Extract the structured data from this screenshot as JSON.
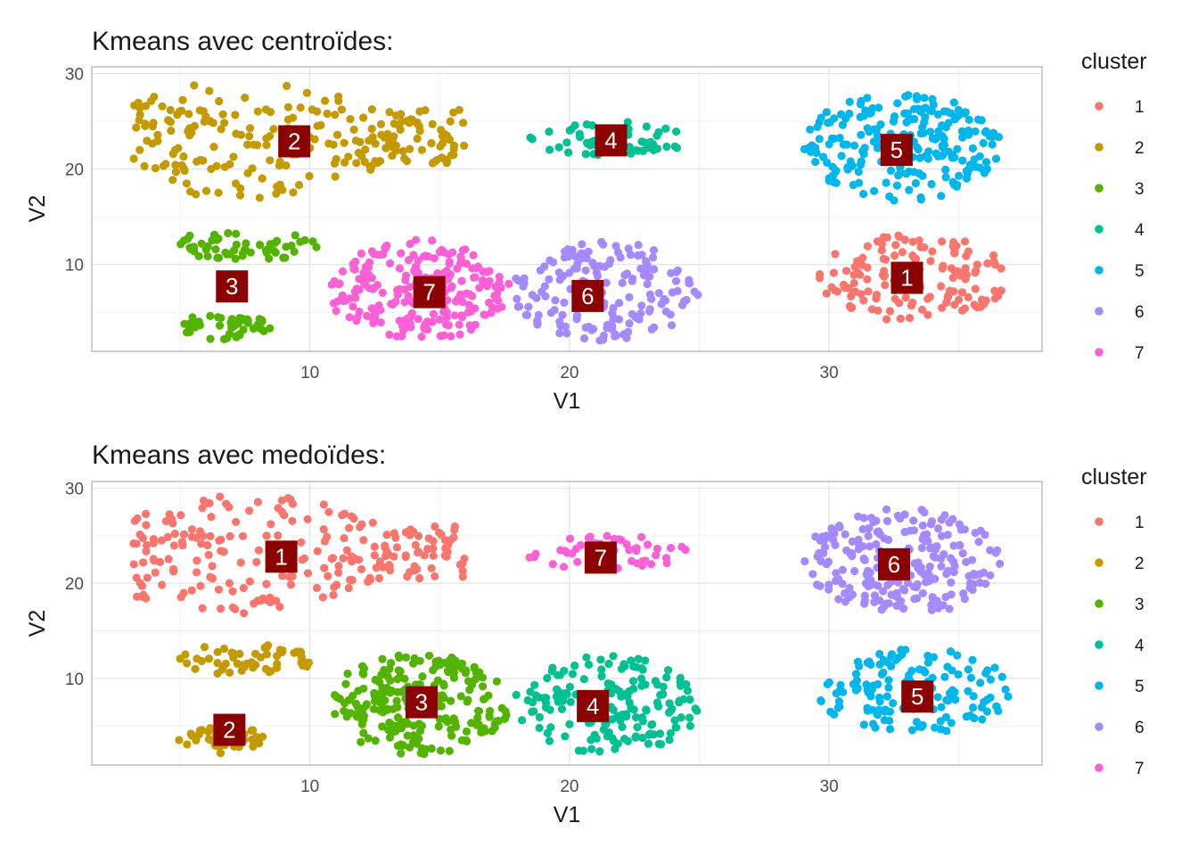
{
  "colors": {
    "palette": [
      "#F8766D",
      "#C49A00",
      "#53B400",
      "#00C094",
      "#00B6EB",
      "#A58AFF",
      "#FB61D7"
    ],
    "centroid_box": "#8B0000",
    "grid": "#e6e6e6",
    "panel_border": "#b3b3b3"
  },
  "chart_data": [
    {
      "type": "scatter",
      "title": "Kmeans avec centroïdes:",
      "xlabel": "V1",
      "ylabel": "V2",
      "xlim": [
        1.6,
        38.2
      ],
      "ylim": [
        0.9,
        30.7
      ],
      "x_ticks": [
        10,
        20,
        30
      ],
      "y_ticks": [
        10,
        20,
        30
      ],
      "grid": true,
      "legend": {
        "title": "cluster",
        "position": "right",
        "entries": [
          "1",
          "2",
          "3",
          "4",
          "5",
          "6",
          "7"
        ]
      },
      "clusters": [
        {
          "label": "1",
          "shape": "ellipse",
          "cx": 33.3,
          "cy": 8.6,
          "rx": 3.7,
          "ry": 4.6,
          "n": 140
        },
        {
          "label": "2",
          "shape": "wedge",
          "cx": 9.5,
          "cy": 23.0,
          "x_left": 3.2,
          "x_right": 16.0,
          "y_min": 16.5,
          "y_max": 29.2,
          "n": 230
        },
        {
          "label": "3",
          "shape": "ellipse",
          "cx": 7.5,
          "cy": 12.0,
          "rx": 2.8,
          "ry": 1.6,
          "n": 55
        },
        {
          "label": "4",
          "shape": "ellipse",
          "cx": 21.5,
          "cy": 23.2,
          "rx": 3.2,
          "ry": 1.8,
          "n": 55
        },
        {
          "label": "5",
          "shape": "ellipse",
          "cx": 32.8,
          "cy": 22.3,
          "rx": 3.8,
          "ry": 5.7,
          "n": 220
        },
        {
          "label": "6",
          "shape": "ellipse",
          "cx": 21.4,
          "cy": 7.2,
          "rx": 3.6,
          "ry": 5.2,
          "n": 170
        },
        {
          "label": "7",
          "shape": "ellipse",
          "cx": 14.2,
          "cy": 7.3,
          "rx": 3.5,
          "ry": 5.3,
          "n": 230
        },
        {
          "label": "3",
          "shape": "ellipse",
          "cx": 6.7,
          "cy": 3.5,
          "rx": 1.8,
          "ry": 1.4,
          "n": 45
        }
      ],
      "centroids": [
        {
          "label": "1",
          "x": 33.0,
          "y": 8.6
        },
        {
          "label": "2",
          "x": 9.4,
          "y": 22.9
        },
        {
          "label": "3",
          "x": 7.0,
          "y": 7.7
        },
        {
          "label": "4",
          "x": 21.6,
          "y": 23.0
        },
        {
          "label": "5",
          "x": 32.6,
          "y": 22.0
        },
        {
          "label": "6",
          "x": 20.7,
          "y": 6.7
        },
        {
          "label": "7",
          "x": 14.6,
          "y": 7.1
        }
      ]
    },
    {
      "type": "scatter",
      "title": "Kmeans avec medoïdes:",
      "xlabel": "V1",
      "ylabel": "V2",
      "xlim": [
        1.6,
        38.2
      ],
      "ylim": [
        0.9,
        30.7
      ],
      "x_ticks": [
        10,
        20,
        30
      ],
      "y_ticks": [
        10,
        20,
        30
      ],
      "grid": true,
      "legend": {
        "title": "cluster",
        "position": "right",
        "entries": [
          "1",
          "2",
          "3",
          "4",
          "5",
          "6",
          "7"
        ]
      },
      "clusters": [
        {
          "label": "1",
          "shape": "wedge",
          "cx": 9.5,
          "cy": 23.0,
          "x_left": 3.2,
          "x_right": 16.0,
          "y_min": 16.5,
          "y_max": 29.2,
          "n": 230
        },
        {
          "label": "2",
          "shape": "ellipse",
          "cx": 7.5,
          "cy": 12.0,
          "rx": 2.8,
          "ry": 1.6,
          "n": 55
        },
        {
          "label": "2",
          "shape": "ellipse",
          "cx": 6.7,
          "cy": 3.5,
          "rx": 1.8,
          "ry": 1.4,
          "n": 45
        },
        {
          "label": "3",
          "shape": "ellipse",
          "cx": 14.2,
          "cy": 7.3,
          "rx": 3.5,
          "ry": 5.3,
          "n": 230
        },
        {
          "label": "4",
          "shape": "ellipse",
          "cx": 21.4,
          "cy": 7.2,
          "rx": 3.6,
          "ry": 5.2,
          "n": 170
        },
        {
          "label": "5",
          "shape": "ellipse",
          "cx": 33.3,
          "cy": 8.6,
          "rx": 3.7,
          "ry": 4.6,
          "n": 140
        },
        {
          "label": "6",
          "shape": "ellipse",
          "cx": 32.8,
          "cy": 22.3,
          "rx": 3.8,
          "ry": 5.7,
          "n": 220
        },
        {
          "label": "7",
          "shape": "ellipse",
          "cx": 21.5,
          "cy": 23.2,
          "rx": 3.2,
          "ry": 1.8,
          "n": 55
        }
      ],
      "centroids": [
        {
          "label": "1",
          "x": 8.9,
          "y": 22.8
        },
        {
          "label": "2",
          "x": 6.9,
          "y": 4.6
        },
        {
          "label": "3",
          "x": 14.3,
          "y": 7.5
        },
        {
          "label": "4",
          "x": 20.9,
          "y": 7.1
        },
        {
          "label": "5",
          "x": 33.4,
          "y": 8.1
        },
        {
          "label": "6",
          "x": 32.5,
          "y": 22.0
        },
        {
          "label": "7",
          "x": 21.2,
          "y": 22.7
        }
      ]
    }
  ]
}
